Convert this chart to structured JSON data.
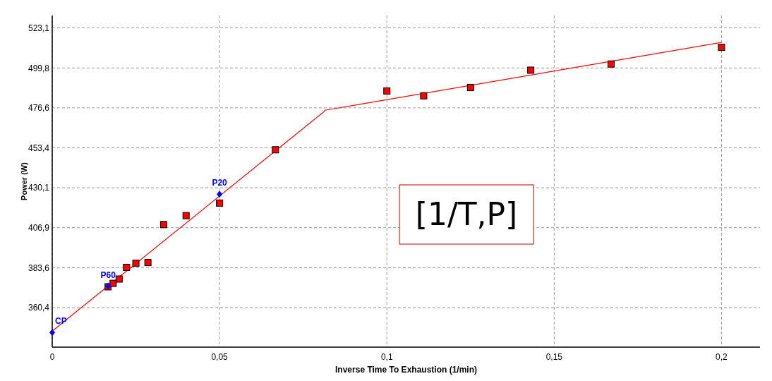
{
  "chart_data": {
    "type": "scatter",
    "xlabel": "Inverse Time To Exhaustion (1/min)",
    "ylabel": "Power (W)",
    "xlim": [
      0,
      0.2115
    ],
    "ylim": [
      337.4,
      530.3
    ],
    "xticks": [
      0,
      {
        "value": 0.05,
        "label": "0,05"
      },
      {
        "value": 0.1,
        "label": "0,1"
      },
      {
        "value": 0.15,
        "label": "0,15"
      },
      {
        "value": 0.2,
        "label": "0,2"
      }
    ],
    "yticks": [
      {
        "value": 360.4,
        "label": "360,4"
      },
      {
        "value": 383.6,
        "label": "383,6"
      },
      {
        "value": 406.9,
        "label": "406,9"
      },
      {
        "value": 430.1,
        "label": "430,1"
      },
      {
        "value": 453.4,
        "label": "453,4"
      },
      {
        "value": 476.6,
        "label": "476,6"
      },
      {
        "value": 499.8,
        "label": "499,8"
      },
      {
        "value": 523.1,
        "label": "523,1"
      }
    ],
    "grid": true,
    "series": [
      {
        "type": "line",
        "color": "#ff0000",
        "marker": "none",
        "line_style": "solid",
        "x": [
          0,
          0.0812,
          0.0815,
          0.2
        ],
        "values": [
          346.7,
          474.4,
          475.2,
          514.7
        ]
      },
      {
        "color": "#ff0000",
        "marker": "square",
        "x": [
          0.0167,
          0.0182,
          0.02,
          0.0222,
          0.025,
          0.0286,
          0.0333,
          0.04,
          0.05,
          0.0667,
          0.1,
          0.111,
          0.125,
          0.143,
          0.167,
          0.2
        ],
        "values": [
          372.5,
          374.5,
          377,
          383.8,
          386.2,
          386.6,
          408.7,
          413.9,
          421.2,
          452.2,
          486.4,
          483.6,
          488.4,
          498.5,
          502.1,
          511.8
        ]
      },
      {
        "color": "#0000ff",
        "marker": "diamond",
        "x": [
          0,
          0.0167,
          0.05
        ],
        "values": [
          345.9,
          372.9,
          426.4
        ]
      }
    ],
    "annotations": [
      {
        "text": "CP",
        "x": 0,
        "y": 345.9
      },
      {
        "text": "P60",
        "x": 0.0167,
        "y": 372.9
      },
      {
        "text": "P20",
        "x": 0.05,
        "y": 426.4
      },
      "[1/T,P]"
    ]
  }
}
